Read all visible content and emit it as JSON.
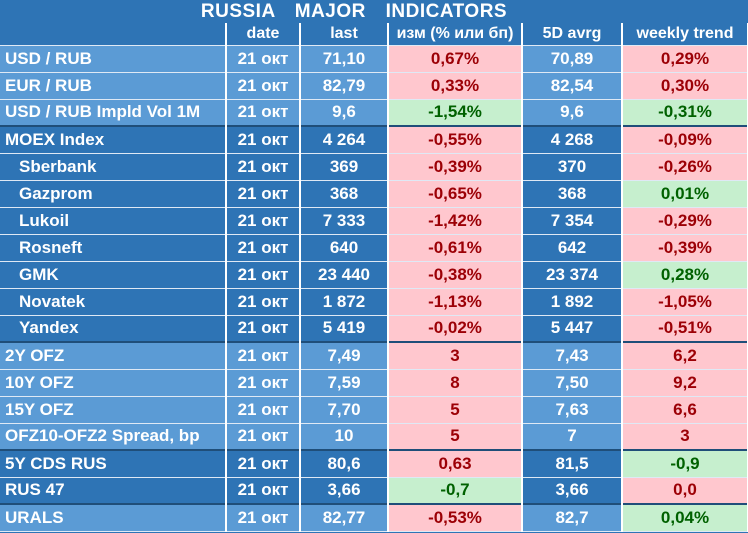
{
  "title": "RUSSIA   MAJOR   INDICATORS",
  "headers": [
    "",
    "date",
    "last",
    "изм (% или бп)",
    "5D avrg",
    "weekly trend"
  ],
  "rows": [
    {
      "name": "USD / RUB",
      "date": "21 окт",
      "last": "71,10",
      "chg": "0,67%",
      "chg_type": "neg",
      "avg": "70,89",
      "trend": "0,29%",
      "trend_type": "neg",
      "group": "light",
      "indent": false,
      "sep": false
    },
    {
      "name": "EUR / RUB",
      "date": "21 окт",
      "last": "82,79",
      "chg": "0,33%",
      "chg_type": "neg",
      "avg": "82,54",
      "trend": "0,30%",
      "trend_type": "neg",
      "group": "light",
      "indent": false,
      "sep": false
    },
    {
      "name": "USD / RUB Impld Vol 1M",
      "date": "21 окт",
      "last": "9,6",
      "chg": "-1,54%",
      "chg_type": "pos",
      "avg": "9,6",
      "trend": "-0,31%",
      "trend_type": "pos",
      "group": "light",
      "indent": false,
      "sep": false
    },
    {
      "name": "MOEX Index",
      "date": "21 окт",
      "last": "4 264",
      "chg": "-0,55%",
      "chg_type": "neg",
      "avg": "4 268",
      "trend": "-0,09%",
      "trend_type": "neg",
      "group": "dark",
      "indent": false,
      "sep": true
    },
    {
      "name": "Sberbank",
      "date": "21 окт",
      "last": "369",
      "chg": "-0,39%",
      "chg_type": "neg",
      "avg": "370",
      "trend": "-0,26%",
      "trend_type": "neg",
      "group": "dark",
      "indent": true,
      "sep": false
    },
    {
      "name": "Gazprom",
      "date": "21 окт",
      "last": "368",
      "chg": "-0,65%",
      "chg_type": "neg",
      "avg": "368",
      "trend": "0,01%",
      "trend_type": "pos",
      "group": "dark",
      "indent": true,
      "sep": false
    },
    {
      "name": "Lukoil",
      "date": "21 окт",
      "last": "7 333",
      "chg": "-1,42%",
      "chg_type": "neg",
      "avg": "7 354",
      "trend": "-0,29%",
      "trend_type": "neg",
      "group": "dark",
      "indent": true,
      "sep": false
    },
    {
      "name": "Rosneft",
      "date": "21 окт",
      "last": "640",
      "chg": "-0,61%",
      "chg_type": "neg",
      "avg": "642",
      "trend": "-0,39%",
      "trend_type": "neg",
      "group": "dark",
      "indent": true,
      "sep": false
    },
    {
      "name": "GMK",
      "date": "21 окт",
      "last": "23 440",
      "chg": "-0,38%",
      "chg_type": "neg",
      "avg": "23 374",
      "trend": "0,28%",
      "trend_type": "pos",
      "group": "dark",
      "indent": true,
      "sep": false
    },
    {
      "name": "Novatek",
      "date": "21 окт",
      "last": "1 872",
      "chg": "-1,13%",
      "chg_type": "neg",
      "avg": "1 892",
      "trend": "-1,05%",
      "trend_type": "neg",
      "group": "dark",
      "indent": true,
      "sep": false
    },
    {
      "name": "Yandex",
      "date": "21 окт",
      "last": "5 419",
      "chg": "-0,02%",
      "chg_type": "neg",
      "avg": "5 447",
      "trend": "-0,51%",
      "trend_type": "neg",
      "group": "dark",
      "indent": true,
      "sep": false
    },
    {
      "name": "2Y OFZ",
      "date": "21 окт",
      "last": "7,49",
      "chg": "3",
      "chg_type": "neg",
      "avg": "7,43",
      "trend": "6,2",
      "trend_type": "neg",
      "group": "light",
      "indent": false,
      "sep": true
    },
    {
      "name": "10Y OFZ",
      "date": "21 окт",
      "last": "7,59",
      "chg": "8",
      "chg_type": "neg",
      "avg": "7,50",
      "trend": "9,2",
      "trend_type": "neg",
      "group": "light",
      "indent": false,
      "sep": false
    },
    {
      "name": "15Y OFZ",
      "date": "21 окт",
      "last": "7,70",
      "chg": "5",
      "chg_type": "neg",
      "avg": "7,63",
      "trend": "6,6",
      "trend_type": "neg",
      "group": "light",
      "indent": false,
      "sep": false
    },
    {
      "name": "OFZ10-OFZ2 Spread, bp",
      "date": "21 окт",
      "last": "10",
      "chg": "5",
      "chg_type": "neg",
      "avg": "7",
      "trend": "3",
      "trend_type": "neg",
      "group": "light",
      "indent": false,
      "sep": false
    },
    {
      "name": "5Y CDS RUS",
      "date": "21 окт",
      "last": "80,6",
      "chg": "0,63",
      "chg_type": "neg",
      "avg": "81,5",
      "trend": "-0,9",
      "trend_type": "pos",
      "group": "dark",
      "indent": false,
      "sep": true
    },
    {
      "name": "RUS 47",
      "date": "21 окт",
      "last": "3,66",
      "chg": "-0,7",
      "chg_type": "pos",
      "avg": "3,66",
      "trend": "0,0",
      "trend_type": "neg",
      "group": "dark",
      "indent": false,
      "sep": false
    },
    {
      "name": "URALS",
      "date": "21 окт",
      "last": "82,77",
      "chg": "-0,53%",
      "chg_type": "neg",
      "avg": "82,7",
      "trend": "0,04%",
      "trend_type": "pos",
      "group": "light",
      "indent": false,
      "sep": true
    }
  ]
}
